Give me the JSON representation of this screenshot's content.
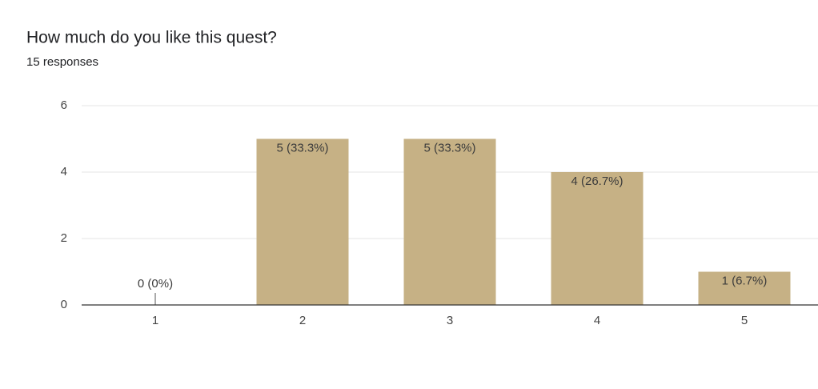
{
  "chart_data": {
    "type": "bar",
    "title": "How much do you like this quest?",
    "subtitle": "15 responses",
    "categories": [
      "1",
      "2",
      "3",
      "4",
      "5"
    ],
    "values": [
      0,
      5,
      5,
      4,
      1
    ],
    "value_labels": [
      "0 (0%)",
      "5 (33.3%)",
      "5 (33.3%)",
      "4 (26.7%)",
      "1 (6.7%)"
    ],
    "color": "#c6b185",
    "ylim": [
      0,
      6
    ],
    "yticks": [
      0,
      2,
      4,
      6
    ],
    "grid": true
  }
}
